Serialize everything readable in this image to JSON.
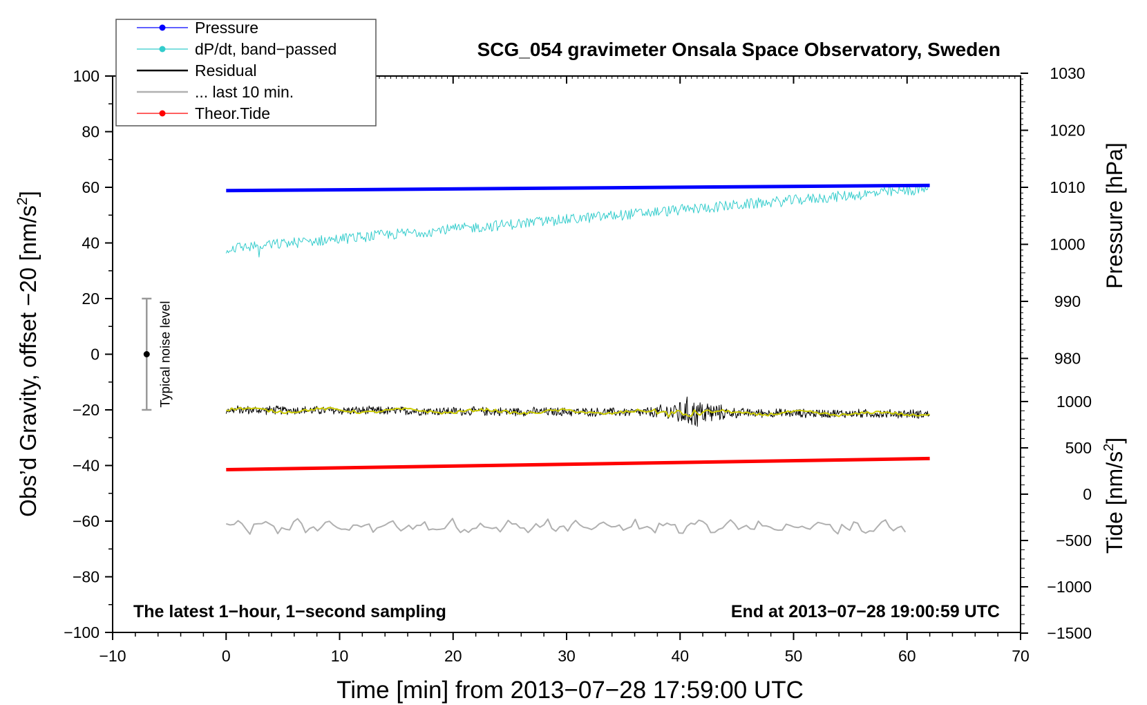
{
  "chart_data": {
    "type": "line",
    "title": "SCG_054 gravimeter Onsala Space Observatory, Sweden",
    "xlabel": "Time [min] from 2013−07−28 17:59:00 UTC",
    "xlim": [
      -10,
      70
    ],
    "xticks": [
      -10,
      0,
      10,
      20,
      30,
      40,
      50,
      60,
      70
    ],
    "xtick_labels": [
      "−10",
      "0",
      "10",
      "20",
      "30",
      "40",
      "50",
      "60",
      "70"
    ],
    "left_axis": {
      "label_main": "Obs’d Gravity, offset −20 [nm/s",
      "label_sup": "2",
      "label_end": "]",
      "lim": [
        -100,
        100
      ],
      "ticks": [
        100,
        80,
        60,
        40,
        20,
        0,
        -20,
        -40,
        -60,
        -80,
        -100
      ],
      "tick_labels": [
        "100",
        "80",
        "60",
        "40",
        "20",
        "0",
        "−20",
        "−40",
        "−60",
        "−80",
        "−100"
      ]
    },
    "pressure_axis": {
      "label": "Pressure [hPa]",
      "ticks": [
        1030,
        1020,
        1010,
        1000,
        990,
        980
      ],
      "tick_labels": [
        "1030",
        "1020",
        "1010",
        "1000",
        "990",
        "980"
      ],
      "gravity_at_1010": 60,
      "gravity_per_hpa": 2.05
    },
    "tide_axis": {
      "label_main": "Tide [nm/s",
      "label_sup": "2",
      "label_end": "]",
      "ticks": [
        1000,
        500,
        0,
        -500,
        -1000,
        -1500
      ],
      "tick_labels": [
        "1000",
        "500",
        "0",
        "−500",
        "−1000",
        "−1500"
      ],
      "gravity_at_1000": -17,
      "gravity_per_unit": 0.0333
    },
    "series": [
      {
        "name": "Pressure",
        "color": "#0000ff",
        "x_start": 0,
        "x_end": 62,
        "y_start": 58.8,
        "y_end": 60.7
      },
      {
        "name": "dP/dt, band-passed",
        "color": "#33cccc",
        "x_start": 0,
        "x_end": 62,
        "y_start": 38,
        "y_end": 59.5,
        "noise": 1.5
      },
      {
        "name": "Residual",
        "color": "#000000",
        "x_start": 0,
        "x_end": 62,
        "y_start": -20,
        "y_end": -21.5,
        "noise": 2.8,
        "burst_center": 41,
        "burst_amplitude": 7
      },
      {
        "name": "... last 10 min.",
        "color": "#b0b0b0",
        "x_start": 0,
        "x_end": 60,
        "y_start": -62,
        "y_end": -62,
        "noise": 2.2
      },
      {
        "name": "Theor.Tide",
        "color": "#ff0000",
        "x_start": 0,
        "x_end": 62,
        "y_start": -41.5,
        "y_end": -37.5
      }
    ],
    "smoothed_residual": {
      "color": "#cccc00"
    },
    "noise_indicator": {
      "label": "Typical noise level",
      "x": -7,
      "y_center": 0,
      "y_low": -20,
      "y_high": 20
    },
    "annotations": {
      "bottom_left": "The latest 1−hour, 1−second sampling",
      "bottom_right": "End at 2013−07−28 19:00:59 UTC"
    },
    "legend": {
      "position": "top-left",
      "entries": [
        {
          "label": "Pressure",
          "color": "#0000ff",
          "marker": true
        },
        {
          "label": "dP/dt, band−passed",
          "color": "#33cccc",
          "marker": true
        },
        {
          "label": "Residual",
          "color": "#000000",
          "marker": false
        },
        {
          "label": "... last 10 min.",
          "color": "#b0b0b0",
          "marker": false
        },
        {
          "label": "Theor.Tide",
          "color": "#ff0000",
          "marker": true
        }
      ]
    }
  }
}
